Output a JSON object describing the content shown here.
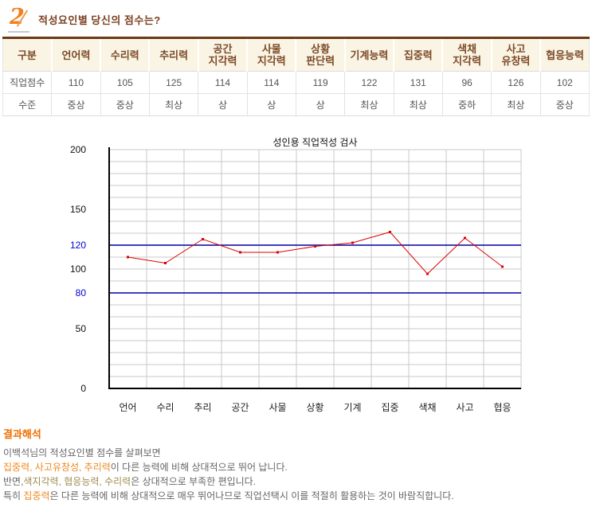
{
  "header": {
    "number": "2",
    "title": "적성요인별 당신의 점수는?"
  },
  "colors": {
    "accent_orange": "#F08020",
    "title_brown": "#7B4222",
    "table_top_border": "#6B3A16",
    "table_header_bg": "#FAF4E4",
    "table_header_text": "#7C4A28",
    "series_red": "#DD0000",
    "reference_navy": "#0000A0",
    "tick_blue": "#0000E0",
    "grid_gray": "#C8C8C8",
    "analysis_heading_orange": "#F06E00",
    "highlight_orange": "#ED8A1F",
    "highlight_tan": "#A08C50"
  },
  "table": {
    "corner_label": "구분",
    "columns": [
      "언어력",
      "수리력",
      "추리력",
      "공간\n지각력",
      "사물\n지각력",
      "상황\n판단력",
      "기계능력",
      "집중력",
      "색채\n지각력",
      "사고\n유창력",
      "협응능력"
    ],
    "rows": [
      {
        "label": "직업점수",
        "values": [
          "110",
          "105",
          "125",
          "114",
          "114",
          "119",
          "122",
          "131",
          "96",
          "126",
          "102"
        ]
      },
      {
        "label": "수준",
        "values": [
          "중상",
          "중상",
          "최상",
          "상",
          "상",
          "상",
          "최상",
          "최상",
          "중하",
          "최상",
          "중상"
        ]
      }
    ]
  },
  "chart_data": {
    "type": "line",
    "title": "성인용 직업적성 검사",
    "categories": [
      "언어",
      "수리",
      "추리",
      "공간",
      "사물",
      "상황",
      "기계",
      "집중",
      "색채",
      "사고",
      "협응"
    ],
    "values": [
      110,
      105,
      125,
      114,
      114,
      119,
      122,
      131,
      96,
      126,
      102
    ],
    "ylim": [
      0,
      200
    ],
    "yticks": [
      0,
      50,
      80,
      100,
      120,
      150,
      200
    ],
    "highlight_ticks": [
      80,
      120
    ],
    "reference_lines": [
      80,
      120
    ],
    "grid_step": 10,
    "grid": "both",
    "legend": "none",
    "line_color": "#DD0000",
    "reference_color": "#0000A0"
  },
  "analysis": {
    "heading": "결과해석",
    "line1": "이백석님의 적성요인별 점수를 살펴보면",
    "line2_highlight": "집중력, 사고유창성, 추리력",
    "line2_rest": "이 다른 능력에 비해 상대적으로 뛰어 납니다.",
    "line3_prefix": "반면,",
    "line3_highlight": "색지각력, 협응능력, 수리력",
    "line3_rest": "은 상대적으로 부족한 편입니다.",
    "line4_prefix": "특히 ",
    "line4_highlight": "집중력",
    "line4_rest": "은 다른 능력에 비해 상대적으로 매우 뛰어나므로 직업선택시 이를 적절히 활용하는 것이 바람직합니다."
  }
}
